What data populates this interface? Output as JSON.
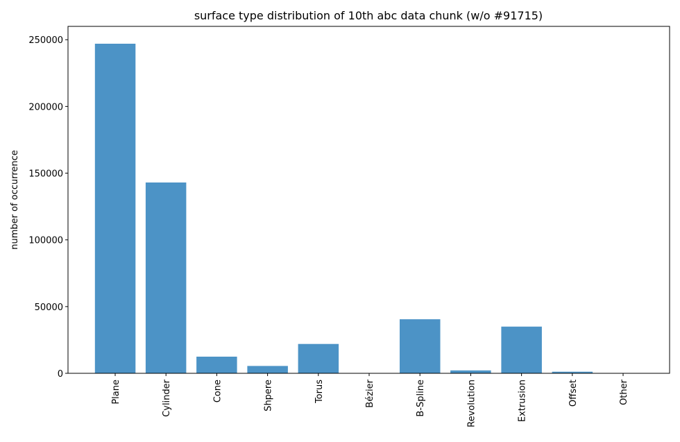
{
  "chart_data": {
    "type": "bar",
    "title": "surface type distribution of 10th abc data chunk (w/o #91715)",
    "xlabel": "",
    "ylabel": "number of occurrence",
    "categories": [
      "Plane",
      "Cylinder",
      "Cone",
      "Shpere",
      "Torus",
      "Bézier",
      "B-Spline",
      "Revolution",
      "Extrusion",
      "Offset",
      "Other"
    ],
    "values": [
      247000,
      143000,
      12500,
      5500,
      22000,
      0,
      40500,
      2200,
      35000,
      1200,
      0
    ],
    "ylim": [
      0,
      260000
    ],
    "yticks": [
      0,
      50000,
      100000,
      150000,
      200000,
      250000
    ],
    "ytick_labels": [
      "0",
      "50000",
      "100000",
      "150000",
      "200000",
      "250000"
    ],
    "bar_color": "#4c93c6",
    "grid": false,
    "legend": "none"
  }
}
